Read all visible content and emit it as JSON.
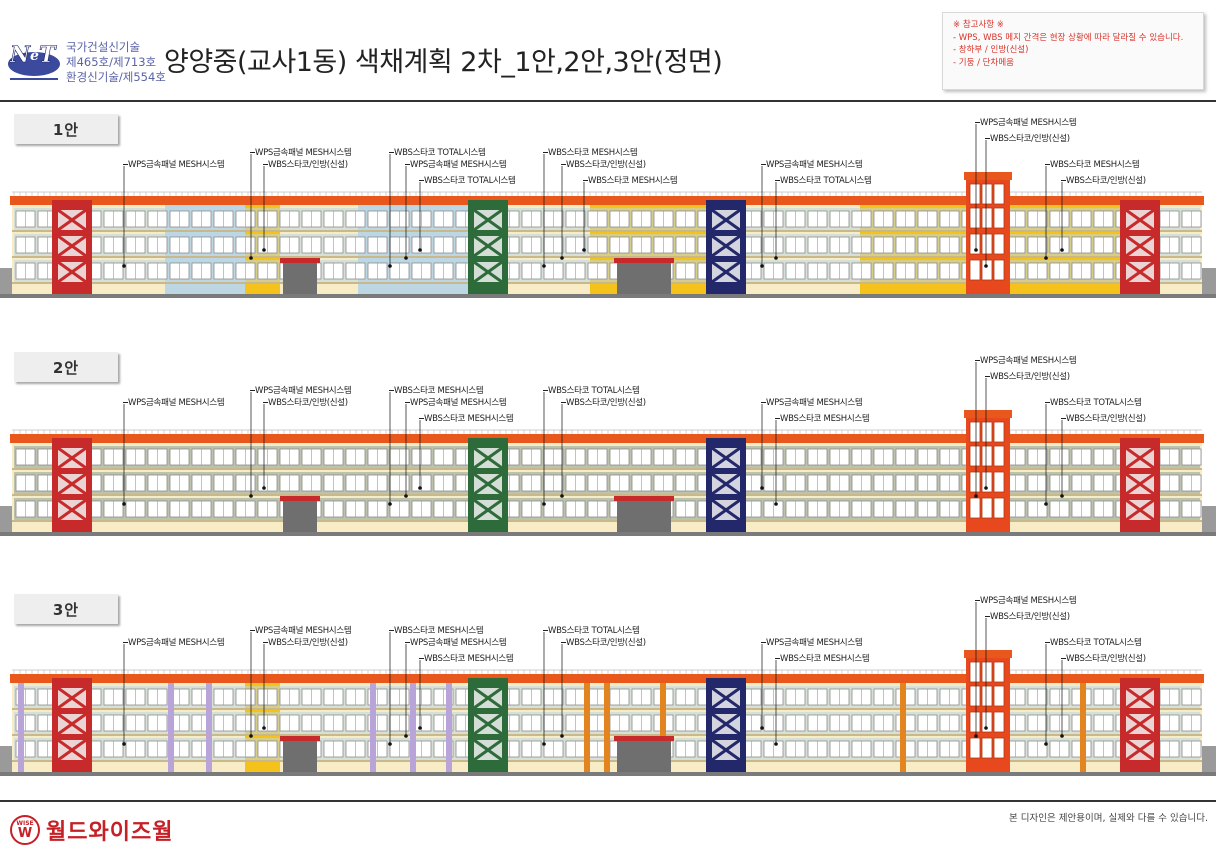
{
  "header": {
    "cert_lines": [
      "국가건설신기술",
      "제465호/제713호",
      "환경신기술/제554호"
    ],
    "title": "양양중(교사1동) 색채계획 2차_1안,2안,3안(정면)"
  },
  "notes": {
    "heading": "※ 참고사항 ※",
    "lines": [
      "- WPS, WBS 메지 간격은 현장 상황에 따라 달라질 수 있습니다.",
      "- 창하부 / 인방(신설)",
      "- 기둥 / 단차메움"
    ]
  },
  "colors": {
    "red": "#c62a2a",
    "green": "#2e6b3b",
    "navy": "#23286b",
    "orange": "#e8481e",
    "yellow": "#f4c21a",
    "lightblue": "#bcd7e3",
    "cream": "#f7ecc5",
    "purple": "#b8a4d8",
    "orange_strip": "#e2841f",
    "sage": "#8aa397",
    "roof": "#e8571c"
  },
  "plans": [
    {
      "label": "1안",
      "callouts": [
        "WPS금속패널 MESH시스템",
        "WPS금속패널 MESH시스템",
        "WBS스타코/인방(신설)",
        "WBS스타코 TOTAL시스템",
        "WPS금속패널 MESH시스템",
        "WBS스타코 TOTAL시스템",
        "WBS스타코 MESH시스템",
        "WBS스타코/인방(신설)",
        "WBS스타코 MESH시스템",
        "WPS금속패널 MESH시스템",
        "WBS스타코 TOTAL시스템",
        "WPS금속패널 MESH시스템",
        "WBS스타코/인방(신설)",
        "WBS스타코 MESH시스템",
        "WBS스타코/인방(신설)"
      ]
    },
    {
      "label": "2안",
      "callouts": [
        "WPS금속패널 MESH시스템",
        "WPS금속패널 MESH시스템",
        "WBS스타코/인방(신설)",
        "WBS스타코 MESH시스템",
        "WPS금속패널 MESH시스템",
        "WBS스타코 MESH시스템",
        "WBS스타코 TOTAL시스템",
        "WBS스타코/인방(신설)",
        "WPS금속패널 MESH시스템",
        "WBS스타코 MESH시스템",
        "WPS금속패널 MESH시스템",
        "WBS스타코/인방(신설)",
        "WBS스타코 TOTAL시스템",
        "WBS스타코/인방(신설)"
      ]
    },
    {
      "label": "3안",
      "callouts": [
        "WPS금속패널 MESH시스템",
        "WPS금속패널 MESH시스템",
        "WBS스타코/인방(신설)",
        "WBS스타코 MESH시스템",
        "WPS금속패널 MESH시스템",
        "WBS스타코 MESH시스템",
        "WBS스타코 TOTAL시스템",
        "WBS스타코/인방(신설)",
        "WPS금속패널 MESH시스템",
        "WBS스타코 MESH시스템",
        "WPS금속패널 MESH시스템",
        "WBS스타코/인방(신설)",
        "WBS스타코 TOTAL시스템",
        "WBS스타코/인방(신설)"
      ]
    }
  ],
  "footer": {
    "logo_badge": "WISE",
    "logo_letter": "W",
    "company": "월드와이즈월",
    "disclaimer": "본 디자인은 제안용이며, 실제와 다를 수 있습니다."
  }
}
